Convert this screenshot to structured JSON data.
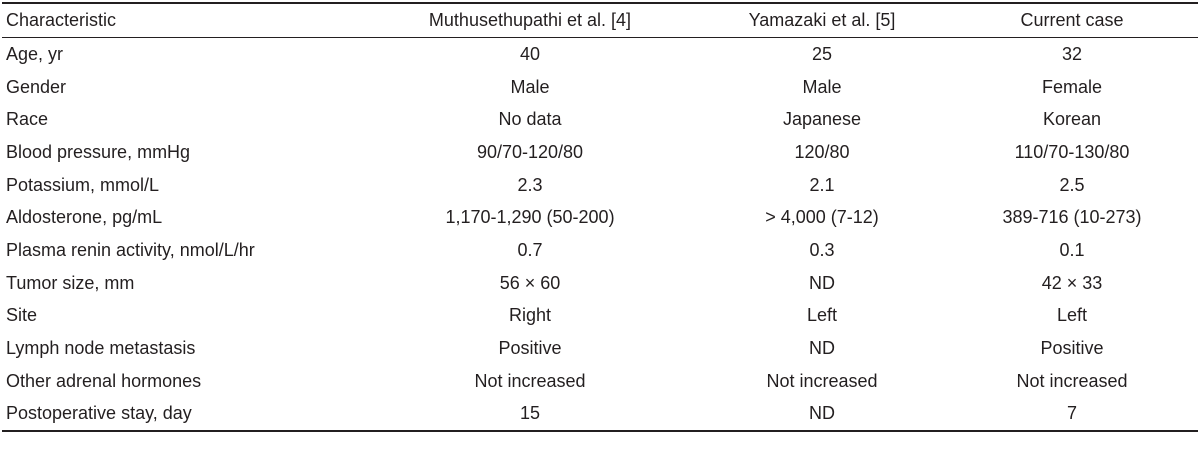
{
  "table": {
    "headers": [
      "Characteristic",
      "Muthusethupathi et al. [4]",
      "Yamazaki et al. [5]",
      "Current case"
    ],
    "rows": [
      [
        "Age, yr",
        "40",
        "25",
        "32"
      ],
      [
        "Gender",
        "Male",
        "Male",
        "Female"
      ],
      [
        "Race",
        "No data",
        "Japanese",
        "Korean"
      ],
      [
        "Blood pressure, mmHg",
        "90/70-120/80",
        "120/80",
        "110/70-130/80"
      ],
      [
        "Potassium, mmol/L",
        "2.3",
        "2.1",
        "2.5"
      ],
      [
        "Aldosterone, pg/mL",
        "1,170-1,290 (50-200)",
        "> 4,000 (7-12)",
        "389-716 (10-273)"
      ],
      [
        "Plasma renin activity, nmol/L/hr",
        "0.7",
        "0.3",
        "0.1"
      ],
      [
        "Tumor size, mm",
        "56 × 60",
        "ND",
        "42 × 33"
      ],
      [
        "Site",
        "Right",
        "Left",
        "Left"
      ],
      [
        "Lymph node metastasis",
        "Positive",
        "ND",
        "Positive"
      ],
      [
        "Other adrenal hormones",
        "Not increased",
        "Not increased",
        "Not increased"
      ],
      [
        "Postoperative stay, day",
        "15",
        "ND",
        "7"
      ]
    ]
  }
}
